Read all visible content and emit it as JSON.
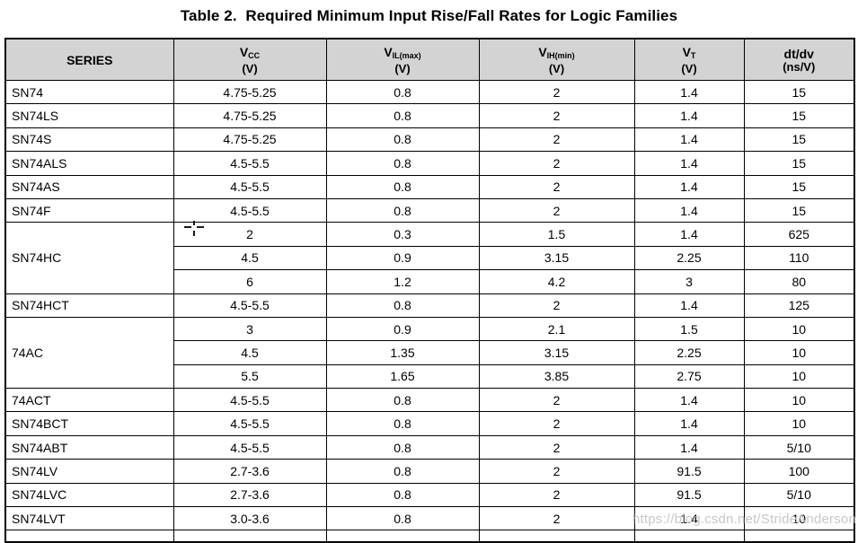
{
  "page": {
    "title": "Table 2.  Required Minimum Input Rise/Fall Rates for Logic Families",
    "watermark": "https://blog.csdn.net/StrideAnderson"
  },
  "colors": {
    "header_bg": "#d3d3d3",
    "border": "#000000",
    "text": "#000000",
    "watermark": "#c1c1c1",
    "page_bg": "#ffffff"
  },
  "table": {
    "columns": [
      {
        "key": "series",
        "label": "SERIES"
      },
      {
        "key": "vcc",
        "main": "V",
        "sub": "CC",
        "unit": "(V)"
      },
      {
        "key": "vil-max",
        "main": "V",
        "sub": "IL(max)",
        "unit": "(V)"
      },
      {
        "key": "vih-min",
        "main": "V",
        "sub": "IH(min)",
        "unit": "(V)"
      },
      {
        "key": "vt",
        "main": "V",
        "sub": "T",
        "unit": "(V)"
      },
      {
        "key": "dtdv",
        "main": "dt/dv",
        "sub": "",
        "unit": "(ns/V)"
      }
    ],
    "rows": [
      {
        "series": "SN74",
        "rowspan": 1,
        "values": [
          "4.75-5.25",
          "0.8",
          "2",
          "1.4",
          "15"
        ]
      },
      {
        "series": "SN74LS",
        "rowspan": 1,
        "values": [
          "4.75-5.25",
          "0.8",
          "2",
          "1.4",
          "15"
        ]
      },
      {
        "series": "SN74S",
        "rowspan": 1,
        "values": [
          "4.75-5.25",
          "0.8",
          "2",
          "1.4",
          "15"
        ]
      },
      {
        "series": "SN74ALS",
        "rowspan": 1,
        "values": [
          "4.5-5.5",
          "0.8",
          "2",
          "1.4",
          "15"
        ]
      },
      {
        "series": "SN74AS",
        "rowspan": 1,
        "values": [
          "4.5-5.5",
          "0.8",
          "2",
          "1.4",
          "15"
        ]
      },
      {
        "series": "SN74F",
        "rowspan": 1,
        "values": [
          "4.5-5.5",
          "0.8",
          "2",
          "1.4",
          "15"
        ]
      },
      {
        "series": "SN74HC",
        "rowspan": 3,
        "values": [
          "2",
          "0.3",
          "1.5",
          "1.4",
          "625"
        ]
      },
      {
        "values": [
          "4.5",
          "0.9",
          "3.15",
          "2.25",
          "110"
        ]
      },
      {
        "values": [
          "6",
          "1.2",
          "4.2",
          "3",
          "80"
        ]
      },
      {
        "series": "SN74HCT",
        "rowspan": 1,
        "values": [
          "4.5-5.5",
          "0.8",
          "2",
          "1.4",
          "125"
        ]
      },
      {
        "series": "74AC",
        "rowspan": 3,
        "values": [
          "3",
          "0.9",
          "2.1",
          "1.5",
          "10"
        ]
      },
      {
        "values": [
          "4.5",
          "1.35",
          "3.15",
          "2.25",
          "10"
        ]
      },
      {
        "values": [
          "5.5",
          "1.65",
          "3.85",
          "2.75",
          "10"
        ]
      },
      {
        "series": "74ACT",
        "rowspan": 1,
        "values": [
          "4.5-5.5",
          "0.8",
          "2",
          "1.4",
          "10"
        ]
      },
      {
        "series": "SN74BCT",
        "rowspan": 1,
        "values": [
          "4.5-5.5",
          "0.8",
          "2",
          "1.4",
          "10"
        ]
      },
      {
        "series": "SN74ABT",
        "rowspan": 1,
        "values": [
          "4.5-5.5",
          "0.8",
          "2",
          "1.4",
          "5/10"
        ]
      },
      {
        "series": "SN74LV",
        "rowspan": 1,
        "values": [
          "2.7-3.6",
          "0.8",
          "2",
          "91.5",
          "100"
        ]
      },
      {
        "series": "SN74LVC",
        "rowspan": 1,
        "values": [
          "2.7-3.6",
          "0.8",
          "2",
          "91.5",
          "5/10"
        ]
      },
      {
        "series": "SN74LVT",
        "rowspan": 1,
        "values": [
          "3.0-3.6",
          "0.8",
          "2",
          "1.4",
          "10"
        ]
      }
    ]
  }
}
